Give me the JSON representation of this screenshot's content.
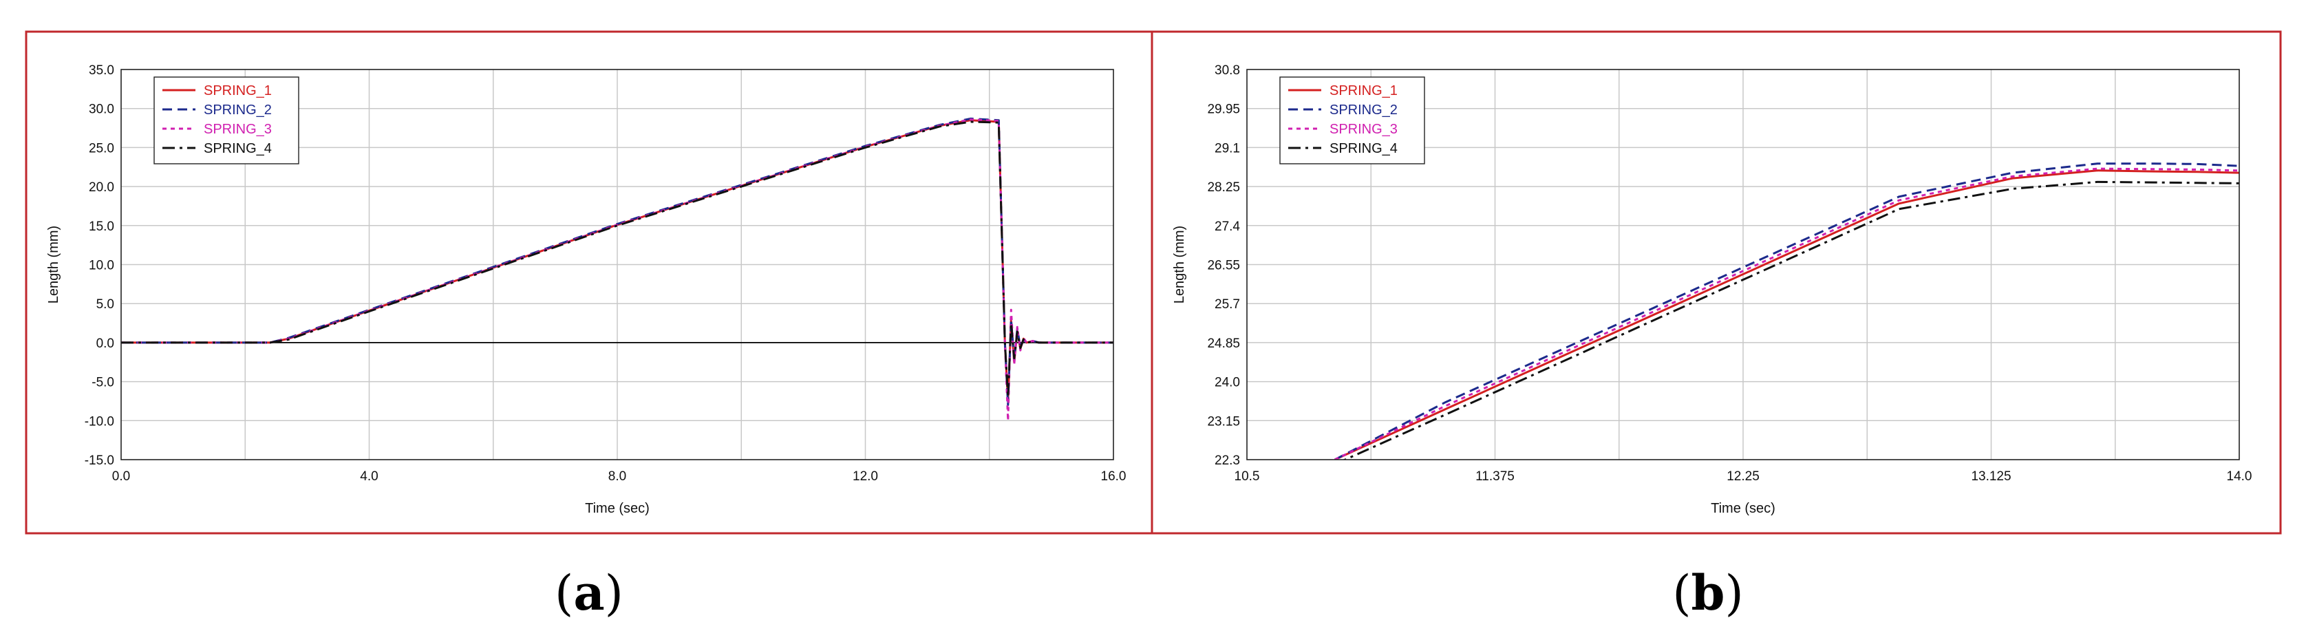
{
  "colors": {
    "frame": "#c0282d",
    "grid": "#c8c8c8",
    "zero_line": "#000000",
    "SPRING_1": "#d42020",
    "SPRING_2": "#1c2a8c",
    "SPRING_3": "#d020b0",
    "SPRING_4": "#111111"
  },
  "chart_data": [
    {
      "type": "line",
      "id": "a",
      "caption_letter": "a",
      "xlabel": "Time (sec)",
      "ylabel": "Length (mm)",
      "xlim": [
        0,
        16
      ],
      "ylim": [
        -15,
        35
      ],
      "x_ticks": [
        "0.0",
        "4.0",
        "8.0",
        "12.0",
        "16.0"
      ],
      "x_tick_values": [
        0,
        4,
        8,
        12,
        16
      ],
      "x_grid_step": 2,
      "y_ticks": [
        "35.0",
        "30.0",
        "25.0",
        "20.0",
        "15.0",
        "10.0",
        "5.0",
        "0.0",
        "-5.0",
        "-10.0",
        "-15.0"
      ],
      "y_tick_values": [
        35,
        30,
        25,
        20,
        15,
        10,
        5,
        0,
        -5,
        -10,
        -15
      ],
      "grid": true,
      "legend_position": "top-left",
      "series": [
        {
          "name": "SPRING_1",
          "style": "solid",
          "x": [
            0,
            2.4,
            2.7,
            4,
            8,
            12,
            13.2,
            13.7,
            14.15,
            14.25,
            14.3,
            14.35,
            14.4,
            14.45,
            14.5,
            14.55,
            14.6,
            14.7,
            14.8,
            16
          ],
          "y": [
            0,
            0,
            0.5,
            4.1,
            15.1,
            25.1,
            27.8,
            28.5,
            28.3,
            0,
            -7.5,
            2.8,
            -2.5,
            1.5,
            -0.8,
            0.5,
            0,
            0.2,
            0,
            0
          ]
        },
        {
          "name": "SPRING_2",
          "style": "dash",
          "x": [
            0,
            2.4,
            2.7,
            4,
            8,
            12,
            13.2,
            13.7,
            14.15,
            14.25,
            14.3,
            14.35,
            14.4,
            14.45,
            14.5,
            14.55,
            14.6,
            14.7,
            14.8,
            16
          ],
          "y": [
            0,
            0,
            0.6,
            4.2,
            15.2,
            25.2,
            27.9,
            28.7,
            28.5,
            0,
            -8.0,
            3.0,
            -2.2,
            1.8,
            -0.6,
            0.4,
            0,
            0.2,
            0,
            0
          ]
        },
        {
          "name": "SPRING_3",
          "style": "dot",
          "x": [
            0,
            2.4,
            2.7,
            4,
            8,
            12,
            13.2,
            13.7,
            14.15,
            14.25,
            14.3,
            14.35,
            14.4,
            14.45,
            14.5,
            14.55,
            14.6,
            14.7,
            14.8,
            16
          ],
          "y": [
            0,
            0,
            0.5,
            4.1,
            15.1,
            25.1,
            27.8,
            28.6,
            28.4,
            0,
            -10.0,
            4.2,
            -2.8,
            2.0,
            -1.0,
            0.6,
            0,
            0.2,
            0,
            0
          ]
        },
        {
          "name": "SPRING_4",
          "style": "dashdot",
          "x": [
            0,
            2.4,
            2.7,
            4,
            8,
            12,
            13.2,
            13.7,
            14.15,
            14.25,
            14.3,
            14.35,
            14.4,
            14.45,
            14.5,
            14.55,
            14.6,
            14.7,
            14.8,
            16
          ],
          "y": [
            0,
            0,
            0.4,
            4.0,
            15.0,
            25.0,
            27.7,
            28.3,
            28.2,
            0,
            -7.0,
            2.5,
            -2.0,
            1.4,
            -0.7,
            0.4,
            0,
            0.1,
            0,
            0
          ]
        }
      ]
    },
    {
      "type": "line",
      "id": "b",
      "caption_letter": "b",
      "xlabel": "Time (sec)",
      "ylabel": "Length (mm)",
      "xlim": [
        10.5,
        14
      ],
      "ylim": [
        22.3,
        30.8
      ],
      "x_ticks": [
        "10.5",
        "11.375",
        "12.25",
        "13.125",
        "14.0"
      ],
      "x_tick_values": [
        10.5,
        11.375,
        12.25,
        13.125,
        14.0
      ],
      "x_grid_step": 0.4375,
      "y_ticks": [
        "30.8",
        "29.95",
        "29.1",
        "28.25",
        "27.4",
        "26.55",
        "25.7",
        "24.85",
        "24.0",
        "23.15",
        "22.3"
      ],
      "y_tick_values": [
        30.8,
        29.95,
        29.1,
        28.25,
        27.4,
        26.55,
        25.7,
        24.85,
        24.0,
        23.15,
        22.3
      ],
      "grid": true,
      "legend_position": "top-left",
      "series": [
        {
          "name": "SPRING_1",
          "style": "solid",
          "x": [
            10.81,
            11.2,
            11.6,
            12.0,
            12.4,
            12.8,
            13.2,
            13.5,
            13.7,
            13.85,
            14.0
          ],
          "y": [
            22.3,
            23.4,
            24.52,
            25.64,
            26.76,
            27.88,
            28.43,
            28.6,
            28.58,
            28.57,
            28.55
          ]
        },
        {
          "name": "SPRING_2",
          "style": "dash",
          "x": [
            10.81,
            11.2,
            11.6,
            12.0,
            12.4,
            12.8,
            13.2,
            13.5,
            13.7,
            13.85,
            14.0
          ],
          "y": [
            22.3,
            23.55,
            24.67,
            25.79,
            26.91,
            28.03,
            28.55,
            28.75,
            28.75,
            28.74,
            28.7
          ]
        },
        {
          "name": "SPRING_3",
          "style": "dot",
          "x": [
            10.81,
            11.2,
            11.6,
            12.0,
            12.4,
            12.8,
            13.2,
            13.5,
            13.7,
            13.85,
            14.0
          ],
          "y": [
            22.3,
            23.47,
            24.59,
            25.71,
            26.83,
            27.95,
            28.47,
            28.64,
            28.63,
            28.62,
            28.6
          ]
        },
        {
          "name": "SPRING_4",
          "style": "dashdot",
          "x": [
            10.81,
            11.2,
            11.6,
            12.0,
            12.4,
            12.8,
            13.2,
            13.5,
            13.7,
            13.85,
            14.0
          ],
          "y": [
            22.2,
            23.28,
            24.4,
            25.52,
            26.64,
            27.76,
            28.2,
            28.35,
            28.34,
            28.33,
            28.32
          ]
        }
      ]
    }
  ]
}
